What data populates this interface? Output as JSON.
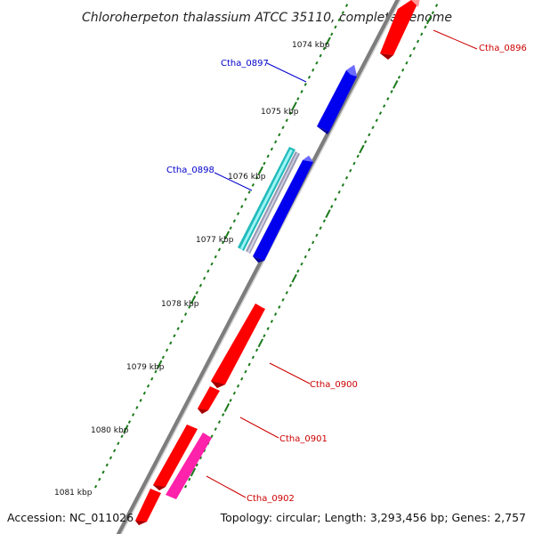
{
  "title": "Chloroherpeton thalassium ATCC 35110, complete genome",
  "footer": {
    "accession": "Accession: NC_011026",
    "summary": "Topology: circular; Length: 3,293,456 bp; Genes: 2,757"
  },
  "ticks": [
    "1074 kbp",
    "1075 kbp",
    "1076 kbp",
    "1077 kbp",
    "1078 kbp",
    "1079 kbp",
    "1080 kbp",
    "1081 kbp"
  ],
  "gene_labels": [
    {
      "name": "Ctha_0896",
      "color": "#cc0000"
    },
    {
      "name": "Ctha_0897",
      "color": "#0000cc"
    },
    {
      "name": "Ctha_0898",
      "color": "#0000cc"
    },
    {
      "name": "Ctha_0900",
      "color": "#cc0000"
    },
    {
      "name": "Ctha_0901",
      "color": "#cc0000"
    },
    {
      "name": "Ctha_0902",
      "color": "#cc0000"
    }
  ],
  "colors": {
    "forward": "#ff0000",
    "reverse": "#0000ee",
    "rna": "#22bbbb",
    "pseudo": "#ff22aa",
    "backbone": "#888888",
    "ruler": "#1a7a1a"
  }
}
